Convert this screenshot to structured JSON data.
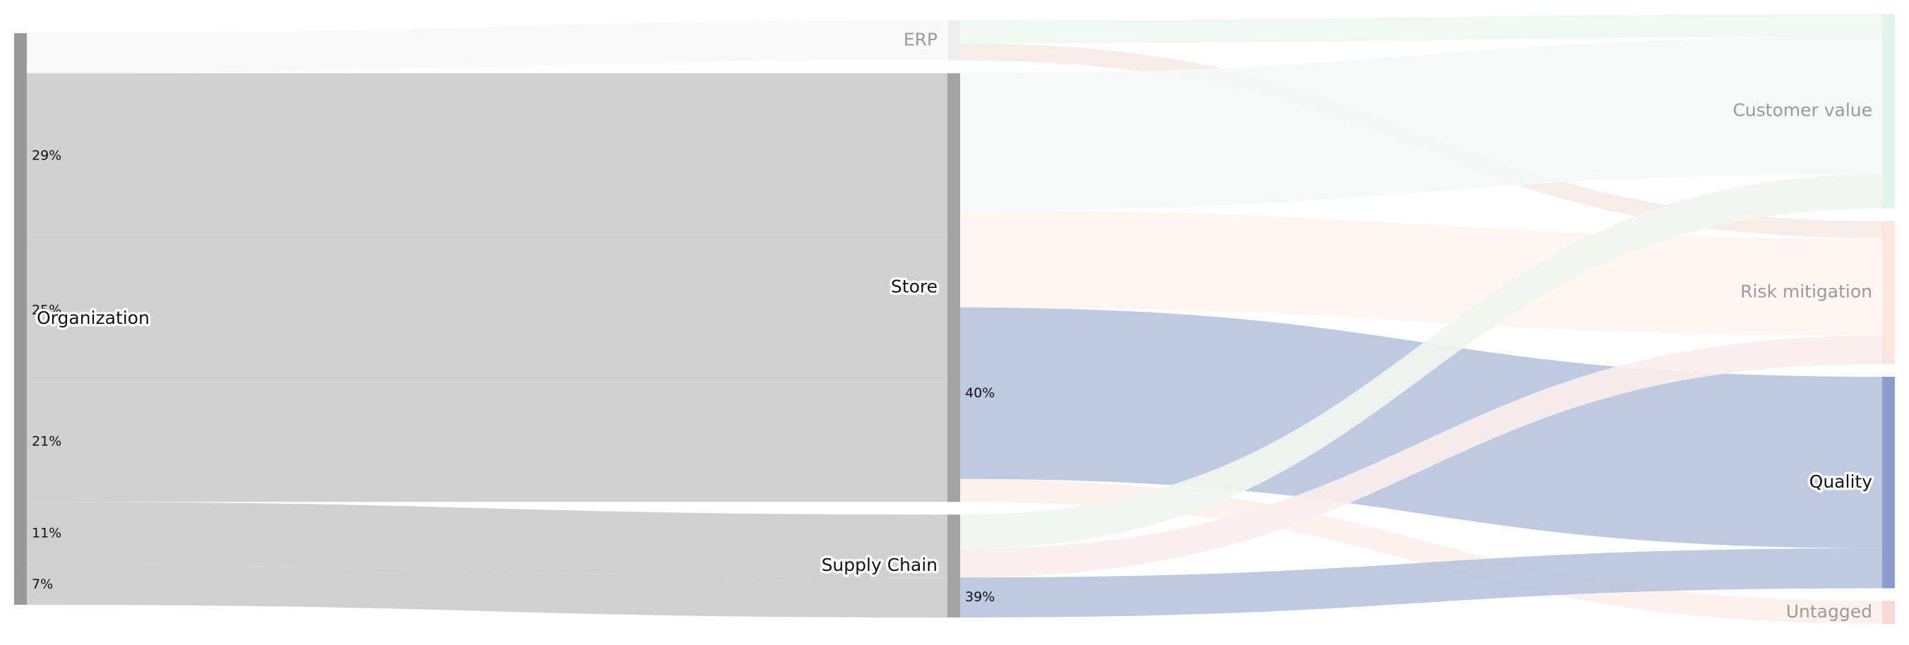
{
  "chart_data": {
    "type": "sankey",
    "title": "",
    "nodes": [
      {
        "id": "org",
        "name": "Organization",
        "column": 0,
        "color": "#999999",
        "dimmed": false
      },
      {
        "id": "erp",
        "name": "ERP",
        "column": 1,
        "color": "#eeeeee",
        "dimmed": true
      },
      {
        "id": "store",
        "name": "Store",
        "column": 1,
        "color": "#a3a3a3",
        "dimmed": false
      },
      {
        "id": "supply",
        "name": "Supply Chain",
        "column": 1,
        "color": "#a3a3a3",
        "dimmed": false
      },
      {
        "id": "cv",
        "name": "Customer value",
        "column": 2,
        "color": "#e1f4ec",
        "dimmed": true
      },
      {
        "id": "rm",
        "name": "Risk mitigation",
        "column": 2,
        "color": "#fde6e0",
        "dimmed": true
      },
      {
        "id": "quality",
        "name": "Quality",
        "column": 2,
        "color": "#8a9ccc",
        "dimmed": false
      },
      {
        "id": "untagged",
        "name": "Untagged",
        "column": 2,
        "color": "#fbd8d3",
        "dimmed": true
      }
    ],
    "links": [
      {
        "source": "org",
        "target": "erp",
        "value": 7,
        "label": "",
        "color": "#f8f8f8"
      },
      {
        "source": "org",
        "target": "store",
        "value": 29,
        "label": "29%",
        "color": "#cccccc"
      },
      {
        "source": "org",
        "target": "store",
        "value": 25,
        "label": "25%",
        "color": "#cccccc"
      },
      {
        "source": "org",
        "target": "store",
        "value": 21,
        "label": "21%",
        "color": "#cccccc"
      },
      {
        "source": "org",
        "target": "supply",
        "value": 11,
        "label": "11%",
        "color": "#cccccc"
      },
      {
        "source": "org",
        "target": "supply",
        "value": 7,
        "label": "7%",
        "color": "#cccccc"
      },
      {
        "source": "erp",
        "target": "cv",
        "value": 4,
        "label": "",
        "color": "#eef7f2"
      },
      {
        "source": "erp",
        "target": "rm",
        "value": 3,
        "label": "",
        "color": "#f6ebe6"
      },
      {
        "source": "store",
        "target": "cv",
        "value": 24,
        "label": "",
        "color": "#f4f9f7"
      },
      {
        "source": "store",
        "target": "rm",
        "value": 17,
        "label": "",
        "color": "#fff5f2"
      },
      {
        "source": "store",
        "target": "quality",
        "value": 30,
        "label": "40%",
        "color": "#b8c4df"
      },
      {
        "source": "store",
        "target": "untagged",
        "value": 4,
        "label": "",
        "color": "#fdf0ee"
      },
      {
        "source": "supply",
        "target": "cv",
        "value": 6,
        "label": "",
        "color": "#f1f5f0"
      },
      {
        "source": "supply",
        "target": "rm",
        "value": 5,
        "label": "",
        "color": "#faeeee"
      },
      {
        "source": "supply",
        "target": "quality",
        "value": 7,
        "label": "39%",
        "color": "#b8c4df"
      }
    ]
  }
}
